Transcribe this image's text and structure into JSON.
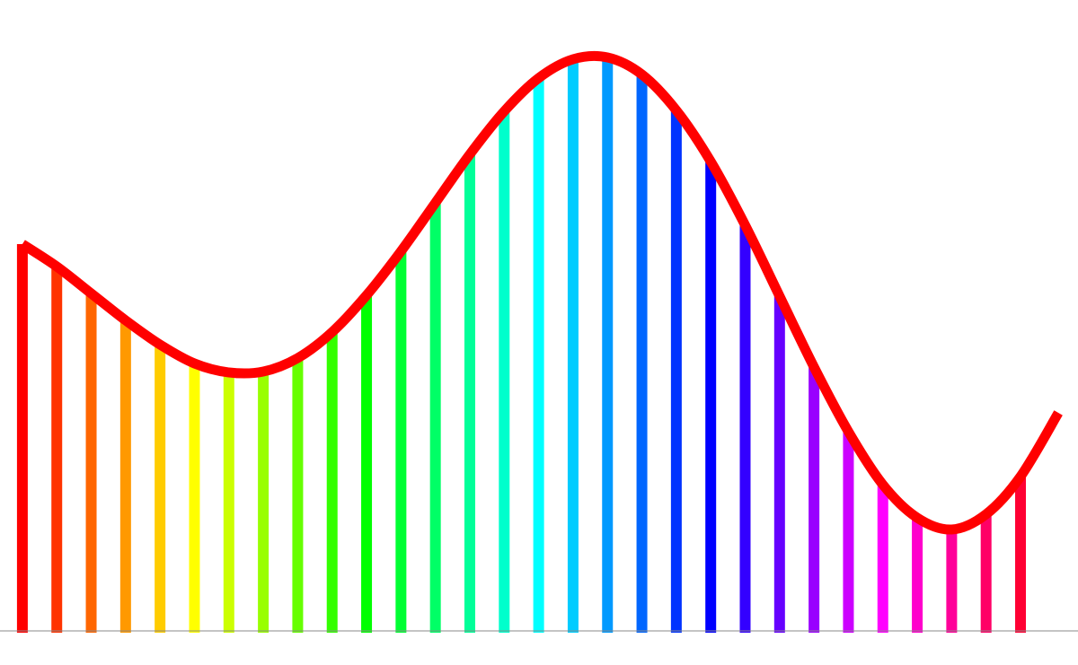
{
  "chart_data": {
    "type": "stem",
    "xlim": [
      0.35,
      31.67
    ],
    "ylim": [
      -36,
      705
    ],
    "baseline_color": "#888888",
    "bars": {
      "x": [
        1,
        2,
        3,
        4,
        5,
        6,
        7,
        8,
        9,
        10,
        11,
        12,
        13,
        14,
        15,
        16,
        17,
        18,
        19,
        20,
        21,
        22,
        23,
        24,
        25,
        26,
        27,
        28,
        29,
        30
      ],
      "values": [
        433,
        408,
        378,
        348,
        321,
        300,
        290,
        291,
        306,
        335,
        376,
        425,
        479,
        533,
        581,
        618,
        639,
        641,
        622,
        582,
        525,
        454,
        375,
        296,
        224,
        165,
        128,
        115,
        132,
        174
      ],
      "colors": [
        "#ff0000",
        "#ff3300",
        "#ff6600",
        "#ff9900",
        "#ffcc00",
        "#ffff00",
        "#ccff00",
        "#99ff00",
        "#66ff00",
        "#33ff00",
        "#00ff00",
        "#00ff33",
        "#00ff66",
        "#00ff99",
        "#00ffcc",
        "#00ffff",
        "#00ccff",
        "#0099ff",
        "#0066ff",
        "#0033ff",
        "#0000ff",
        "#3300ff",
        "#6600ff",
        "#9900ff",
        "#cc00ff",
        "#ff00ff",
        "#ff00cc",
        "#ff0099",
        "#ff0066",
        "#ff0033"
      ]
    },
    "curve": {
      "color": "#ff0000",
      "x": [
        1,
        2,
        3,
        4,
        5,
        6,
        7,
        8,
        9,
        10,
        11,
        12,
        13,
        14,
        15,
        16,
        17,
        18,
        19,
        20,
        21,
        22,
        23,
        24,
        25,
        26,
        27,
        28,
        29,
        30,
        31.1
      ],
      "values": [
        433,
        408,
        378,
        348,
        321,
        300,
        290,
        291,
        306,
        335,
        376,
        425,
        479,
        533,
        581,
        618,
        639,
        641,
        622,
        582,
        525,
        454,
        375,
        296,
        224,
        165,
        128,
        115,
        132,
        174,
        245
      ]
    }
  }
}
